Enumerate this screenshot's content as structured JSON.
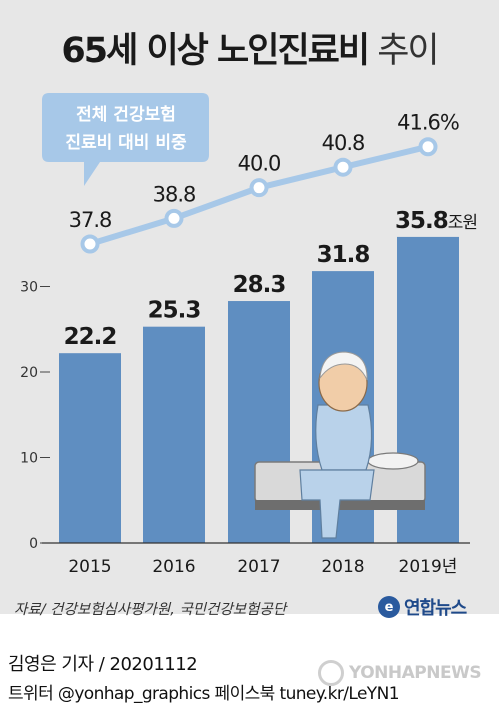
{
  "title": {
    "main": "65세 이상 노인진료비",
    "sub": "추이"
  },
  "chart_data": {
    "type": "bar",
    "categories": [
      "2015",
      "2016",
      "2017",
      "2018",
      "2019년"
    ],
    "bars": {
      "values": [
        22.2,
        25.3,
        28.3,
        31.8,
        35.8
      ],
      "unit": "조원"
    },
    "ratio": {
      "values": [
        37.8,
        38.8,
        40.0,
        40.8,
        41.6
      ],
      "labels": [
        "37.8",
        "38.8",
        "40.0",
        "40.8",
        "41.6%"
      ],
      "callout": [
        "전체 건강보험",
        "진료비 대비 비중"
      ]
    },
    "yticks": [
      "0",
      "10",
      "20",
      "30"
    ],
    "ylim": [
      0,
      40
    ]
  },
  "colors": {
    "bar": "#5f8ec1",
    "line": "#a7c8e8",
    "callout": "#a7c8e8",
    "background": "#e7e7e7"
  },
  "footer": {
    "source": "자료/ 건강보험심사평가원, 국민건강보험공단",
    "brand": "연합뉴스",
    "brand_mark": "e",
    "byline": "김영은 기자 / 20201112",
    "social": "트위터 @yonhap_graphics  페이스북 tuney.kr/LeYN1",
    "watermark": "YONHAPNEWS"
  }
}
